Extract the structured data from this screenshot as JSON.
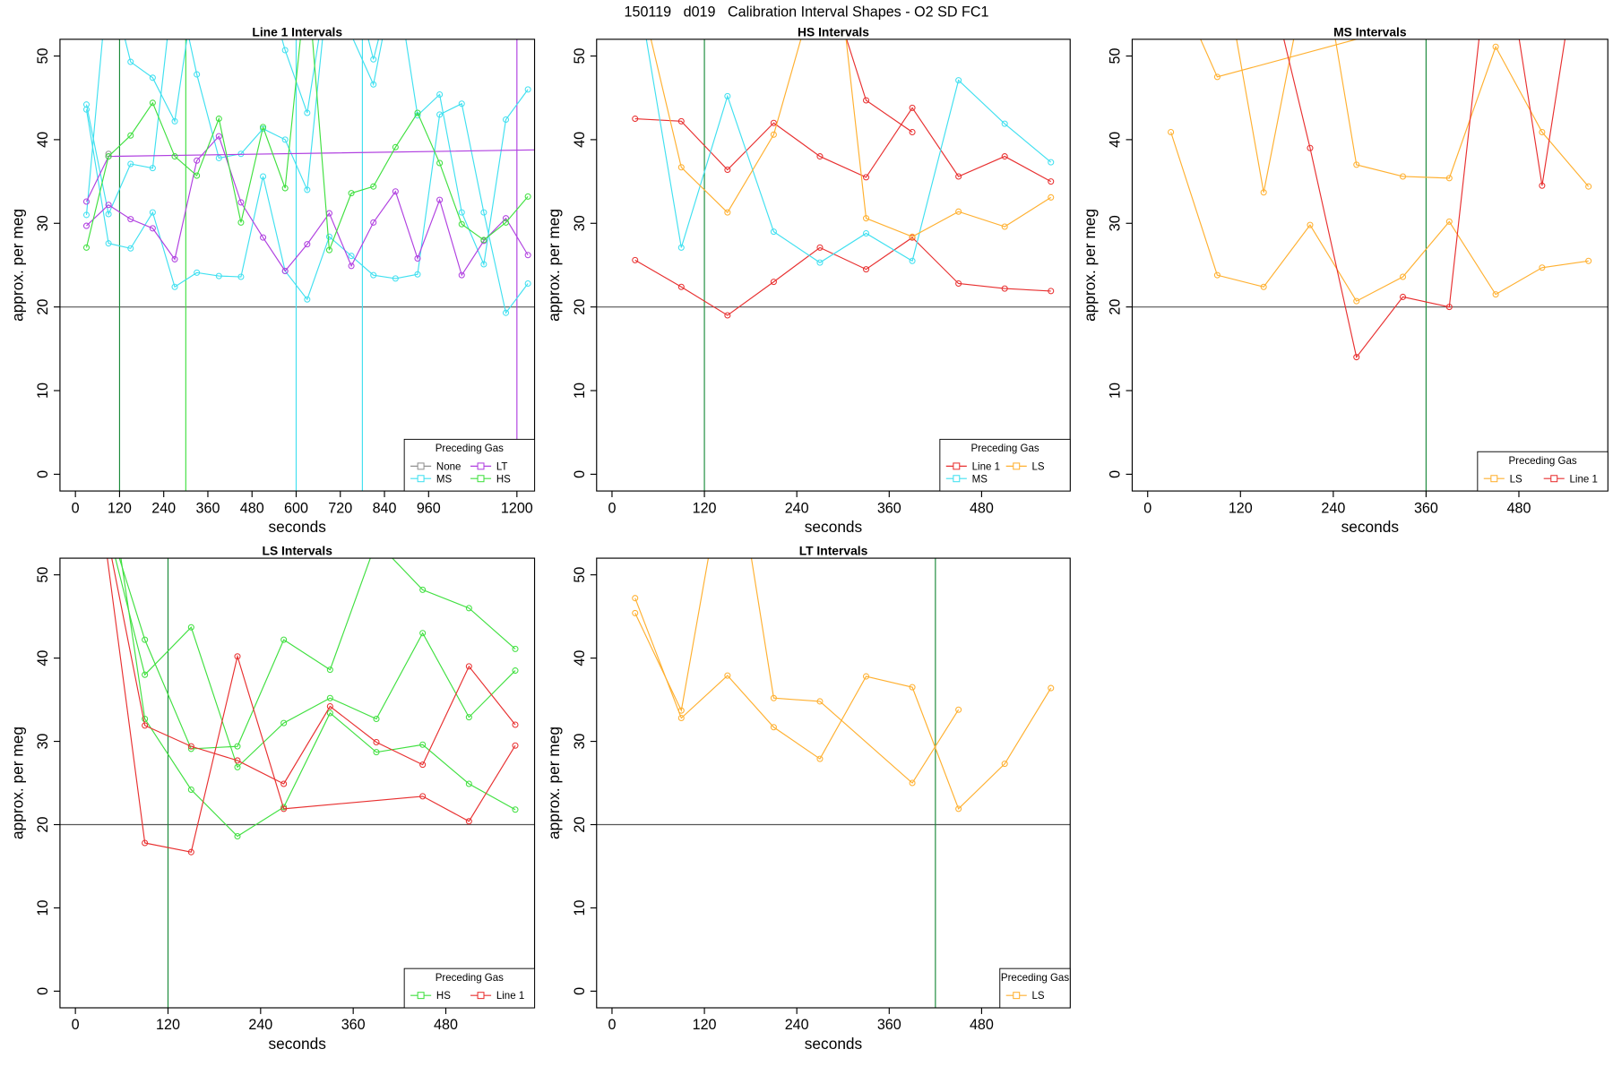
{
  "title": "150119   d019   Calibration Interval Shapes - O2 SD FC1",
  "chart_data": [
    {
      "type": "line",
      "title": "Line 1 Intervals",
      "xlabel": "seconds",
      "ylabel": "approx. per meg",
      "xlim": [
        -42,
        1248
      ],
      "ylim": [
        -2,
        52
      ],
      "xticks": [
        0,
        120,
        240,
        360,
        480,
        600,
        720,
        840,
        960,
        1200
      ],
      "yticks": [
        0,
        10,
        20,
        30,
        40,
        50
      ],
      "hline": 20,
      "vlines": [
        {
          "x": 120,
          "color": "#1a8a3a"
        },
        {
          "x": 300,
          "color": "#40e040"
        },
        {
          "x": 600,
          "color": "#40e0f0"
        },
        {
          "x": 780,
          "color": "#40e0f0"
        },
        {
          "x": 1200,
          "color": "#b040e0"
        }
      ],
      "legend": {
        "title": "Preceding Gas",
        "position": "bottomright",
        "ncol": 2
      },
      "series": [
        {
          "name": "None",
          "color": "#909090",
          "x": [
            90
          ],
          "values": [
            38.3
          ]
        },
        {
          "name": "MS",
          "color": "#40e0f0",
          "x": [
            30,
            90,
            150,
            210,
            270,
            330,
            390,
            450,
            510,
            570,
            630,
            690,
            750,
            810,
            870,
            930,
            990,
            1050,
            1110,
            1170,
            1230
          ],
          "values": [
            43.6,
            27.6,
            27.0,
            31.3,
            22.4,
            24.1,
            23.7,
            23.6,
            35.6,
            24.3,
            20.9,
            28.4,
            26.1,
            23.8,
            23.4,
            23.9,
            43.0,
            44.3,
            31.3,
            19.3,
            22.8
          ]
        },
        {
          "name": "MS",
          "color": "#40e0f0",
          "x": [
            30,
            90,
            150,
            210,
            270,
            330,
            390,
            450,
            510,
            570,
            630,
            690,
            750,
            810,
            870,
            930,
            990,
            1050,
            1110,
            1170,
            1230
          ],
          "values": [
            44.2,
            31.1,
            37.1,
            36.6,
            60,
            47.8,
            37.8,
            38.3,
            41.3,
            40.0,
            34.0,
            60,
            52.5,
            46.6,
            60,
            42.9,
            45.4,
            31.3,
            25.1,
            42.4,
            46.0
          ]
        },
        {
          "name": "MS",
          "color": "#40e0f0",
          "x": [
            30,
            90,
            150,
            210,
            270,
            330
          ],
          "values": [
            31.0,
            60,
            49.3,
            47.4,
            42.2,
            60
          ]
        },
        {
          "name": "MS",
          "color": "#40e0f0",
          "x": [
            510,
            570,
            630,
            690
          ],
          "values": [
            60,
            50.7,
            43.2,
            60
          ]
        },
        {
          "name": "MS",
          "color": "#40e0f0",
          "x": [
            750,
            810,
            870
          ],
          "values": [
            60,
            49.6,
            60
          ]
        },
        {
          "name": "LT",
          "color": "#b040e0",
          "x": [
            30,
            90,
            150,
            210,
            270,
            330,
            390,
            450,
            510,
            570,
            630,
            690,
            750,
            810,
            870,
            930,
            990,
            1050,
            1110,
            1170,
            1230
          ],
          "values": [
            29.7,
            32.2,
            30.5,
            29.4,
            25.7,
            37.5,
            40.4,
            32.5,
            28.3,
            24.3,
            27.5,
            31.2,
            24.9,
            30.1,
            33.8,
            25.8,
            32.8,
            23.8,
            27.9,
            30.6,
            26.2
          ]
        },
        {
          "name": "LT",
          "color": "#b040e0",
          "x": [
            30,
            90,
            1290
          ],
          "values": [
            32.6,
            38.0,
            38.8
          ]
        },
        {
          "name": "HS",
          "color": "#40e040",
          "x": [
            30,
            90,
            150,
            210,
            270,
            330,
            390,
            450,
            510,
            570,
            630,
            690,
            750,
            810,
            870,
            930,
            990,
            1050,
            1110,
            1170,
            1230
          ],
          "values": [
            27.1,
            38.0,
            40.5,
            44.4,
            38.0,
            35.7,
            42.5,
            30.1,
            41.5,
            34.2,
            60,
            26.8,
            33.6,
            34.4,
            39.1,
            43.2,
            37.2,
            29.9,
            28.0,
            30.1,
            33.2
          ]
        }
      ]
    },
    {
      "type": "line",
      "title": "HS Intervals",
      "xlabel": "seconds",
      "ylabel": "approx. per meg",
      "xlim": [
        -20,
        595
      ],
      "ylim": [
        -2,
        52
      ],
      "xticks": [
        0,
        120,
        240,
        360,
        480
      ],
      "yticks": [
        0,
        10,
        20,
        30,
        40,
        50
      ],
      "hline": 20,
      "vlines": [
        {
          "x": 120,
          "color": "#1a8a3a"
        }
      ],
      "legend": {
        "title": "Preceding Gas",
        "position": "bottomright",
        "ncol": 2
      },
      "series": [
        {
          "name": "Line 1",
          "color": "#e83030",
          "x": [
            30,
            90,
            150,
            210,
            270,
            330,
            390,
            450,
            510,
            570
          ],
          "values": [
            42.5,
            42.2,
            36.4,
            42.0,
            38.0,
            35.5,
            43.8,
            35.6,
            38.0,
            35.0
          ]
        },
        {
          "name": "Line 1",
          "color": "#e83030",
          "x": [
            270,
            330,
            390
          ],
          "values": [
            62,
            44.7,
            40.9
          ]
        },
        {
          "name": "Line 1",
          "color": "#e83030",
          "x": [
            30,
            90,
            150,
            210,
            270,
            330,
            390,
            450,
            510,
            570
          ],
          "values": [
            25.6,
            22.4,
            19.0,
            23.0,
            27.1,
            24.5,
            28.3,
            22.8,
            22.2,
            21.9
          ]
        },
        {
          "name": "MS",
          "color": "#40e0f0",
          "x": [
            30,
            90,
            150,
            210,
            270,
            330,
            390,
            450,
            510,
            570
          ],
          "values": [
            60,
            27.1,
            45.2,
            29.0,
            25.3,
            28.8,
            25.5,
            47.1,
            41.9,
            37.3
          ]
        },
        {
          "name": "LS",
          "color": "#ffb030",
          "x": [
            30,
            90,
            150,
            210,
            270
          ],
          "values": [
            60,
            36.7,
            31.3,
            40.6,
            60
          ]
        },
        {
          "name": "LS",
          "color": "#ffb030",
          "x": [
            270,
            330,
            390,
            450,
            510,
            570
          ],
          "values": [
            80,
            30.6,
            28.4,
            31.4,
            29.6,
            33.1
          ]
        }
      ]
    },
    {
      "type": "line",
      "title": "MS Intervals",
      "xlabel": "seconds",
      "ylabel": "approx. per meg",
      "xlim": [
        -20,
        595
      ],
      "ylim": [
        -2,
        52
      ],
      "xticks": [
        0,
        120,
        240,
        360,
        480
      ],
      "yticks": [
        0,
        10,
        20,
        30,
        40,
        50
      ],
      "hline": 20,
      "vlines": [
        {
          "x": 360,
          "color": "#1a8a3a"
        }
      ],
      "legend": {
        "title": "Preceding Gas",
        "position": "bottomright",
        "ncol": 2
      },
      "series": [
        {
          "name": "LS",
          "color": "#ffb030",
          "x": [
            30,
            90,
            150,
            210,
            270,
            330,
            390,
            450,
            510,
            570
          ],
          "values": [
            40.9,
            23.8,
            22.4,
            29.8,
            20.7,
            23.6,
            30.2,
            21.5,
            24.7,
            25.5
          ]
        },
        {
          "name": "LS",
          "color": "#ffb030",
          "x": [
            30,
            90,
            390
          ],
          "values": [
            60,
            47.5,
            55
          ]
        },
        {
          "name": "LS",
          "color": "#ffb030",
          "x": [
            90,
            150,
            210
          ],
          "values": [
            65,
            33.7,
            62
          ]
        },
        {
          "name": "LS",
          "color": "#ffb030",
          "x": [
            210,
            270,
            330,
            390,
            450,
            510,
            570
          ],
          "values": [
            70,
            37.0,
            35.6,
            35.4,
            51.1,
            40.9,
            34.4
          ]
        },
        {
          "name": "Line 1",
          "color": "#e83030",
          "x": [
            150,
            210,
            270,
            330,
            390,
            450,
            510,
            570
          ],
          "values": [
            62,
            39.0,
            14.0,
            21.2,
            20.0,
            70,
            34.5,
            70
          ]
        }
      ]
    },
    {
      "type": "line",
      "title": "LS Intervals",
      "xlabel": "seconds",
      "ylabel": "approx. per meg",
      "xlim": [
        -20,
        595
      ],
      "ylim": [
        -2,
        52
      ],
      "xticks": [
        0,
        120,
        240,
        360,
        480
      ],
      "yticks": [
        0,
        10,
        20,
        30,
        40,
        50
      ],
      "hline": 20,
      "vlines": [
        {
          "x": 120,
          "color": "#1a8a3a"
        }
      ],
      "legend": {
        "title": "Preceding Gas",
        "position": "bottomright",
        "ncol": 2
      },
      "series": [
        {
          "name": "HS",
          "color": "#40e040",
          "x": [
            30,
            90,
            150,
            210,
            270,
            330,
            390,
            450,
            510,
            570
          ],
          "values": [
            60,
            42.2,
            29.1,
            29.4,
            42.2,
            38.6,
            54,
            48.2,
            46.0,
            41.1
          ]
        },
        {
          "name": "HS",
          "color": "#40e040",
          "x": [
            30,
            90,
            150,
            210,
            270,
            330,
            390,
            450,
            510,
            570
          ],
          "values": [
            60,
            38.0,
            43.7,
            26.9,
            32.2,
            35.2,
            32.7,
            43.0,
            32.9,
            38.5
          ]
        },
        {
          "name": "HS",
          "color": "#40e040",
          "x": [
            30,
            90,
            150,
            210,
            270,
            330,
            390,
            450,
            510,
            570
          ],
          "values": [
            70,
            32.7,
            24.2,
            18.6,
            22.1,
            33.4,
            28.7,
            29.6,
            24.9,
            21.8
          ]
        },
        {
          "name": "Line 1",
          "color": "#e83030",
          "x": [
            30,
            90,
            150,
            210,
            270,
            330,
            390,
            450,
            510,
            570
          ],
          "values": [
            60,
            31.9,
            29.4,
            27.7,
            24.9,
            34.2,
            29.9,
            27.2,
            39.0,
            32.0
          ]
        },
        {
          "name": "Line 1",
          "color": "#e83030",
          "x": [
            30,
            90,
            150,
            210,
            270,
            450,
            510,
            570
          ],
          "values": [
            60,
            17.8,
            16.7,
            40.2,
            21.9,
            23.4,
            20.4,
            29.5
          ]
        }
      ]
    },
    {
      "type": "line",
      "title": "LT Intervals",
      "xlabel": "seconds",
      "ylabel": "approx. per meg",
      "xlim": [
        -20,
        595
      ],
      "ylim": [
        -2,
        52
      ],
      "xticks": [
        0,
        120,
        240,
        360,
        480
      ],
      "yticks": [
        0,
        10,
        20,
        30,
        40,
        50
      ],
      "hline": 20,
      "vlines": [
        {
          "x": 420,
          "color": "#1a8a3a"
        }
      ],
      "legend": {
        "title": "Preceding Gas",
        "position": "bottomright",
        "ncol": 1
      },
      "series": [
        {
          "name": "LS",
          "color": "#ffb030",
          "x": [
            30,
            90,
            150,
            210,
            270,
            330,
            390,
            450,
            510,
            570
          ],
          "values": [
            47.2,
            32.8,
            37.9,
            31.7,
            27.9,
            37.8,
            36.5,
            21.9,
            27.3,
            36.4
          ]
        },
        {
          "name": "LS",
          "color": "#ffb030",
          "x": [
            30,
            90,
            150
          ],
          "values": [
            45.4,
            33.7,
            65
          ]
        },
        {
          "name": "LS",
          "color": "#ffb030",
          "x": [
            150,
            210,
            270,
            390,
            450
          ],
          "values": [
            70,
            35.2,
            34.8,
            25.0,
            33.8
          ]
        }
      ]
    }
  ]
}
